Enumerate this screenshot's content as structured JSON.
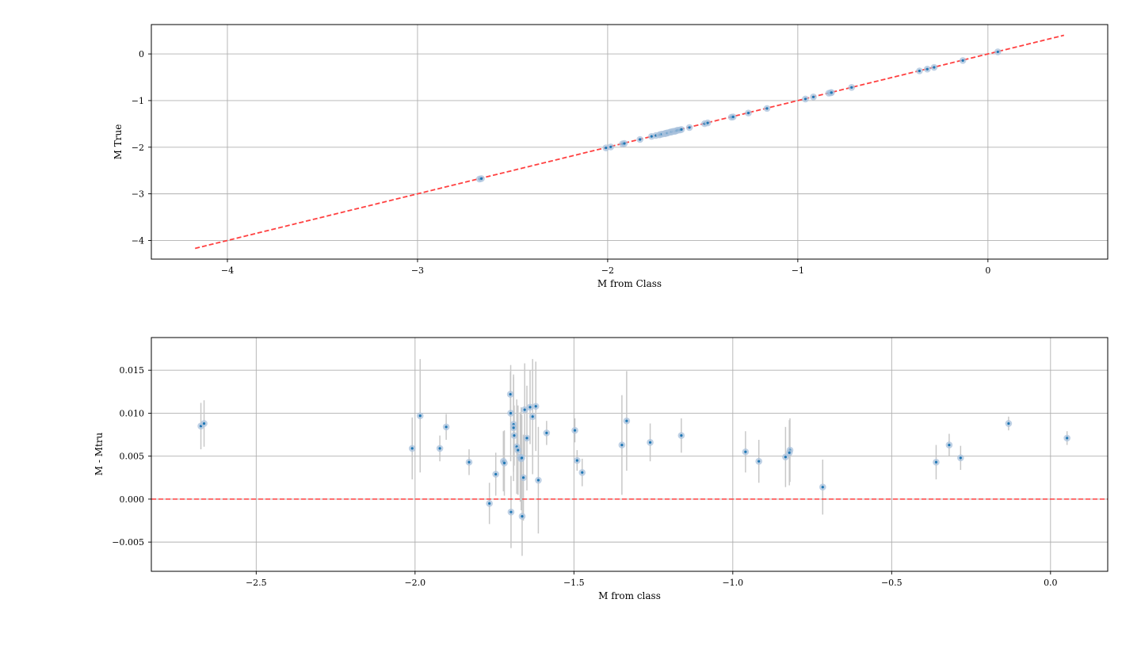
{
  "chart_data": [
    {
      "type": "scatter",
      "title": "",
      "xlabel": "M from Class",
      "ylabel": "M True",
      "xlim": [
        -4.4,
        0.63
      ],
      "ylim": [
        -4.4,
        0.63
      ],
      "xticks": [
        -4,
        -3,
        -2,
        -1,
        0
      ],
      "yticks": [
        -4,
        -3,
        -2,
        -1,
        0
      ],
      "xtick_labels": [
        "−4",
        "−3",
        "−2",
        "−1",
        "0"
      ],
      "ytick_labels": [
        "−4",
        "−3",
        "−2",
        "−1",
        "0"
      ],
      "grid": true,
      "reference_line": {
        "x": [
          -4.17,
          0.4
        ],
        "y": [
          -4.17,
          0.4
        ],
        "style": "dashed",
        "color": "#ff4040"
      },
      "colors": {
        "point": "#1f77b4",
        "halo": "#a9c1dc",
        "line": "#ff4040"
      },
      "x": [
        -2.674,
        -2.664,
        -2.009,
        -1.984,
        -1.922,
        -1.912,
        -1.83,
        -1.769,
        -1.746,
        -1.728,
        -1.722,
        -1.713,
        -1.699,
        -1.698,
        -1.692,
        -1.688,
        -1.684,
        -1.673,
        -1.667,
        -1.664,
        -1.656,
        -1.648,
        -1.643,
        -1.638,
        -1.632,
        -1.621,
        -1.612,
        -1.57,
        -1.49,
        -1.474,
        -1.349,
        -1.34,
        -1.26,
        -1.162,
        -0.96,
        -0.918,
        -0.837,
        -0.827,
        -0.823,
        -0.717,
        -0.36,
        -0.319,
        -0.283,
        -0.132,
        0.052
      ],
      "y": [
        -2.682,
        -2.673,
        -2.015,
        -1.994,
        -1.928,
        -1.92,
        -1.834,
        -1.768,
        -1.749,
        -1.736,
        -1.727,
        -1.718,
        -1.707,
        -1.708,
        -1.699,
        -1.697,
        -1.693,
        -1.678,
        -1.673,
        -1.671,
        -1.661,
        -1.659,
        -1.654,
        -1.645,
        -1.636,
        -1.631,
        -1.62,
        -1.578,
        -1.496,
        -1.479,
        -1.356,
        -1.35,
        -1.267,
        -1.169,
        -0.966,
        -0.922,
        -0.842,
        -0.832,
        -0.829,
        -0.718,
        -0.364,
        -0.325,
        -0.288,
        -0.141,
        0.045
      ]
    },
    {
      "type": "scatter",
      "title": "",
      "xlabel": "M from class",
      "ylabel": "M - Mtru",
      "xlim": [
        -2.83,
        0.18
      ],
      "ylim": [
        -0.0084,
        0.0188
      ],
      "xticks": [
        -2.5,
        -2.0,
        -1.5,
        -1.0,
        -0.5,
        0.0
      ],
      "yticks": [
        -0.005,
        0.0,
        0.005,
        0.01,
        0.015
      ],
      "xtick_labels": [
        "−2.5",
        "−2.0",
        "−1.5",
        "−1.0",
        "−0.5",
        "0.0"
      ],
      "ytick_labels": [
        "−0.005",
        "0.000",
        "0.005",
        "0.010",
        "0.015"
      ],
      "grid": true,
      "reference_line": {
        "y": 0.0,
        "style": "dashed",
        "color": "#ff4040"
      },
      "colors": {
        "point": "#1f77b4",
        "halo": "#a9c1dc",
        "errorbar": "#c8c8c8",
        "line": "#ff4040"
      },
      "x": [
        -2.674,
        -2.664,
        -2.009,
        -1.984,
        -1.922,
        -1.902,
        -1.83,
        -1.766,
        -1.746,
        -1.722,
        -1.719,
        -1.7,
        -1.699,
        -1.698,
        -1.69,
        -1.69,
        -1.688,
        -1.68,
        -1.676,
        -1.669,
        -1.666,
        -1.664,
        -1.663,
        -1.659,
        -1.655,
        -1.648,
        -1.638,
        -1.63,
        -1.62,
        -1.612,
        -1.586,
        -1.497,
        -1.49,
        -1.474,
        -1.349,
        -1.334,
        -1.26,
        -1.162,
        -0.96,
        -0.918,
        -0.834,
        -0.82,
        -0.822,
        -0.717,
        -0.36,
        -0.319,
        -0.283,
        -0.132,
        0.052
      ],
      "y": [
        0.0085,
        0.0088,
        0.0059,
        0.0097,
        0.0059,
        0.0084,
        0.0043,
        -0.0005,
        0.0029,
        0.0044,
        0.0042,
        0.0122,
        0.01,
        -0.0015,
        0.0087,
        0.0083,
        0.0074,
        0.0061,
        0.0057,
        0.0049,
        0.0047,
        0.0048,
        -0.002,
        0.0025,
        0.0104,
        0.0071,
        0.0107,
        0.0096,
        0.0108,
        0.0022,
        0.0077,
        0.008,
        0.0045,
        0.0031,
        0.0063,
        0.0091,
        0.0066,
        0.0074,
        0.0055,
        0.0044,
        0.0049,
        0.0057,
        0.0054,
        0.0014,
        0.0043,
        0.0063,
        0.0048,
        0.0088,
        0.0071
      ],
      "yerr": [
        0.0027,
        0.0027,
        0.0036,
        0.0066,
        0.0015,
        0.0015,
        0.0015,
        0.0024,
        0.0025,
        0.0035,
        0.0038,
        0.0026,
        0.0056,
        0.0042,
        0.0055,
        0.0062,
        0.0035,
        0.0055,
        0.0052,
        0.0052,
        0.006,
        0.005,
        0.0046,
        0.005,
        0.0054,
        0.0061,
        0.0043,
        0.0067,
        0.0052,
        0.0062,
        0.0014,
        0.0014,
        0.0012,
        0.0016,
        0.0058,
        0.0058,
        0.0022,
        0.002,
        0.0024,
        0.0025,
        0.0035,
        0.0037,
        0.0038,
        0.0032,
        0.002,
        0.0013,
        0.0014,
        0.0008,
        0.0008
      ]
    }
  ]
}
